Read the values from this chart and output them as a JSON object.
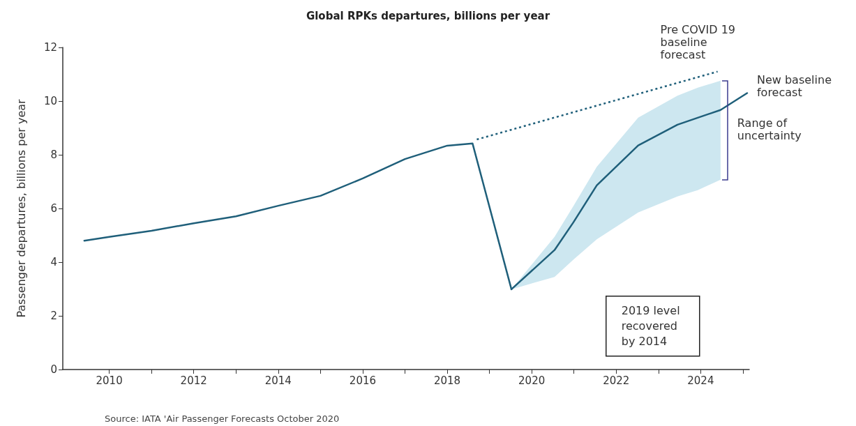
{
  "chart_data": {
    "type": "line",
    "title": "Global RPKs departures, billions per year",
    "ylabel": "Passenger departures, billions per year",
    "xlim": [
      2008.9,
      2025.15
    ],
    "xticks": [
      2010,
      {
        "value": 2011,
        "label": null
      },
      2012,
      {
        "value": 2013,
        "label": null
      },
      2014,
      {
        "value": 2015,
        "label": null
      },
      2016,
      {
        "value": 2017,
        "label": null
      },
      2018,
      {
        "value": 2019,
        "label": null
      },
      2020,
      {
        "value": 2021,
        "label": null
      },
      2022,
      {
        "value": 2023,
        "label": null
      },
      2024,
      {
        "value": 2025,
        "label": null
      }
    ],
    "ylim": [
      0,
      12
    ],
    "yticks": [
      0,
      2,
      4,
      6,
      8,
      10,
      12
    ],
    "grid": false,
    "legend": false,
    "marker": "none",
    "series": [
      {
        "color": "#1f5f7a",
        "line_style": "solid",
        "x": [
          2009.41,
          2010.0,
          2011.0,
          2012.0,
          2013.0,
          2014.0,
          2015.0,
          2016.0,
          2017.0,
          2018.0,
          2018.6,
          2019.52
        ],
        "values": [
          4.8,
          4.94,
          5.17,
          5.45,
          5.71,
          6.1,
          6.47,
          7.12,
          7.84,
          8.34,
          8.42,
          2.99
        ]
      },
      {
        "name": "New baseline forecast",
        "color": "#1f5f7a",
        "line_style": "solid",
        "x": [
          2019.52,
          2020.54,
          2020.99,
          2021.54,
          2022.52,
          2023.45,
          2023.93,
          2024.47,
          2025.1
        ],
        "values": [
          2.99,
          4.45,
          5.49,
          6.86,
          8.35,
          9.12,
          9.38,
          9.67,
          10.3
        ],
        "lower": [
          2.99,
          3.45,
          4.1,
          4.85,
          5.85,
          6.45,
          6.68,
          7.07,
          null
        ],
        "upper": [
          2.99,
          4.94,
          6.1,
          7.55,
          9.38,
          10.2,
          10.5,
          10.76,
          null
        ]
      },
      {
        "name": "Pre COVID 19 baseline forecast",
        "color": "#1f5f7a",
        "line_style": "dotted",
        "x": [
          2018.7,
          2024.4
        ],
        "values": [
          8.57,
          11.1
        ]
      }
    ],
    "annotations": [
      {
        "text": "Range of uncertainty",
        "x": 2024.47,
        "y": 8.9
      },
      "2019 level recovered by 2014",
      "Source: IATA 'Air Passenger Forecasts October 2020"
    ]
  }
}
